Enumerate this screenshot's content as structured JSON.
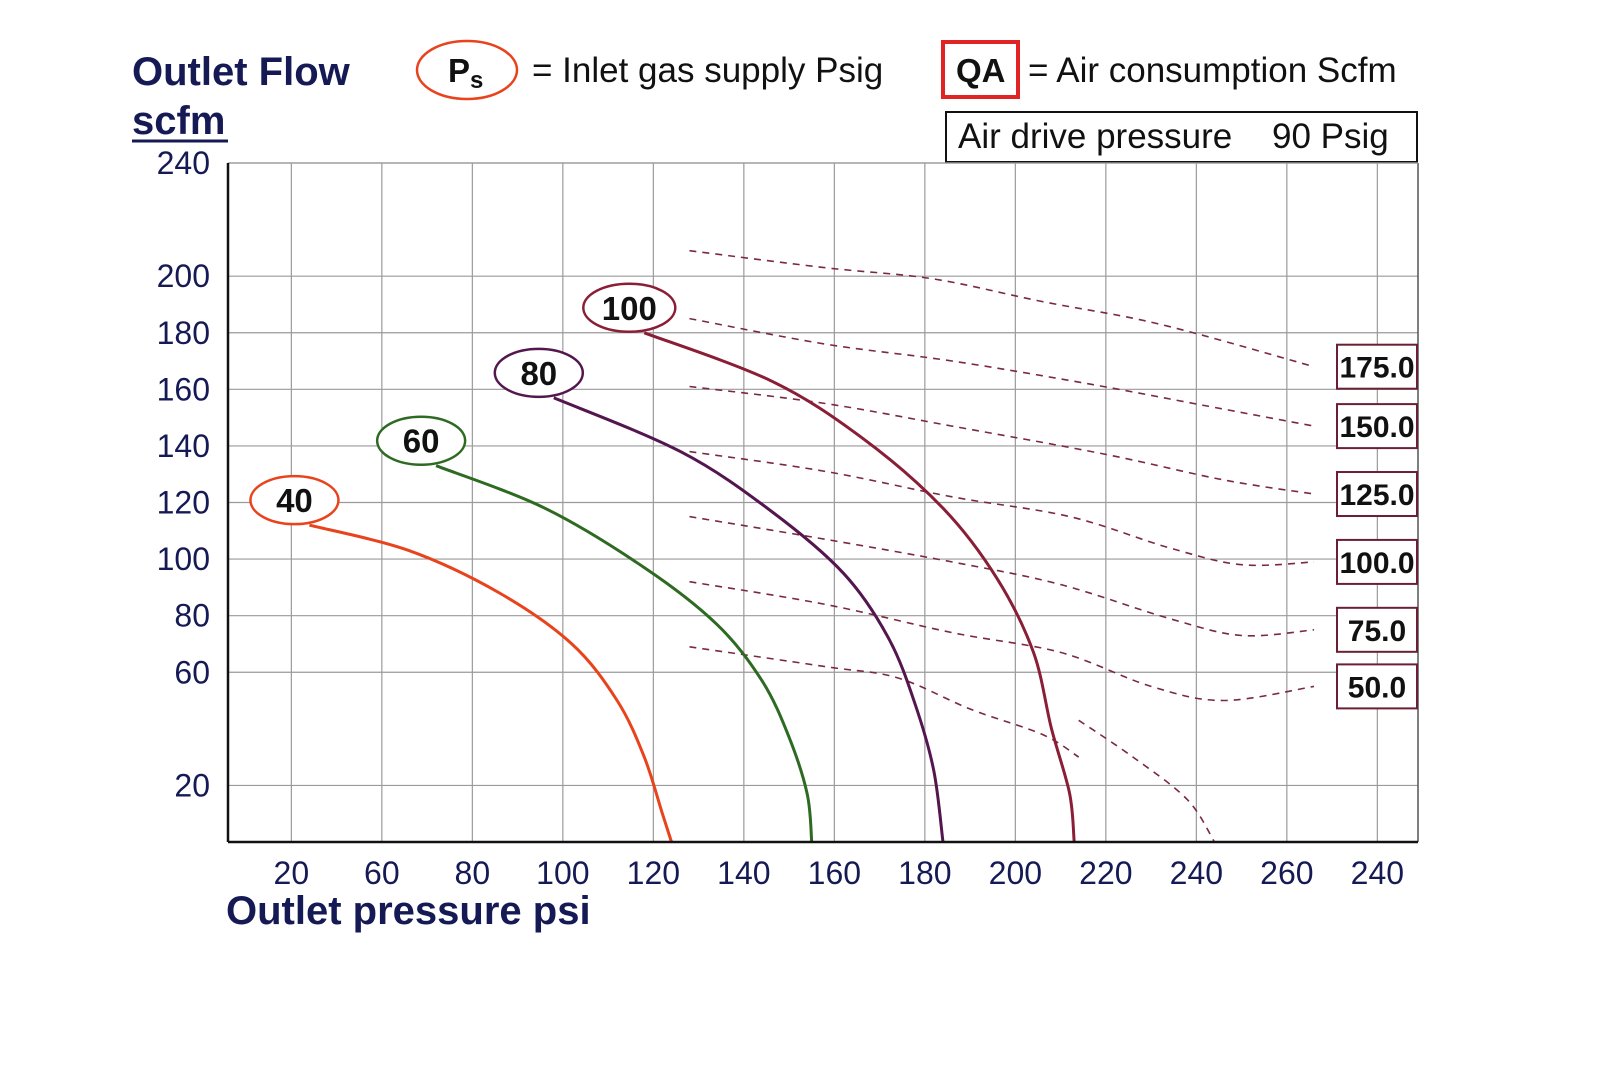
{
  "chart_data": {
    "type": "line",
    "ylabel_line1": "Outlet Flow",
    "ylabel_line2": "scfm",
    "xlabel": "Outlet pressure  psi",
    "legend": {
      "ps_symbol": "P",
      "ps_subscript": "s",
      "ps_text": "= Inlet gas supply  Psig",
      "qa_symbol": "QA",
      "qa_text": "= Air consumption  Scfm",
      "drive_label": "Air drive pressure",
      "drive_value": "90 Psig"
    },
    "x_tick_labels": [
      "20",
      "60",
      "80",
      "100",
      "120",
      "140",
      "160",
      "180",
      "200",
      "220",
      "240",
      "260",
      "240"
    ],
    "y_tick_labels": [
      "20",
      "60",
      "80",
      "100",
      "120",
      "140",
      "160",
      "180",
      "200",
      "240"
    ],
    "grid": true,
    "supply_pressure_curves": [
      {
        "name": "40",
        "color": "#e8431c",
        "points": [
          [
            0.9,
            112
          ],
          [
            2.0,
            103
          ],
          [
            3.0,
            88
          ],
          [
            3.8,
            70
          ],
          [
            4.3,
            50
          ],
          [
            4.6,
            30
          ],
          [
            4.8,
            10
          ],
          [
            4.9,
            0
          ]
        ]
      },
      {
        "name": "60",
        "color": "#2e6a22",
        "points": [
          [
            2.3,
            133
          ],
          [
            3.5,
            118
          ],
          [
            4.6,
            97
          ],
          [
            5.4,
            77
          ],
          [
            5.9,
            57
          ],
          [
            6.2,
            37
          ],
          [
            6.4,
            17
          ],
          [
            6.45,
            0
          ]
        ]
      },
      {
        "name": "80",
        "color": "#53164e",
        "points": [
          [
            3.6,
            157
          ],
          [
            5.0,
            138
          ],
          [
            6.0,
            117
          ],
          [
            6.8,
            95
          ],
          [
            7.3,
            72
          ],
          [
            7.6,
            48
          ],
          [
            7.8,
            25
          ],
          [
            7.9,
            0
          ]
        ]
      },
      {
        "name": "100",
        "color": "#8a1e36",
        "points": [
          [
            4.6,
            180
          ],
          [
            6.0,
            163
          ],
          [
            7.0,
            143
          ],
          [
            7.9,
            118
          ],
          [
            8.5,
            93
          ],
          [
            8.9,
            67
          ],
          [
            9.1,
            40
          ],
          [
            9.3,
            17
          ],
          [
            9.35,
            0
          ]
        ]
      }
    ],
    "air_consumption_lines": [
      {
        "name": "175.0",
        "points": [
          [
            5.1,
            209
          ],
          [
            6.6,
            203
          ],
          [
            7.8,
            199
          ],
          [
            9.0,
            191
          ],
          [
            10.3,
            183
          ],
          [
            12.0,
            168
          ]
        ]
      },
      {
        "name": "150.0",
        "points": [
          [
            5.1,
            185
          ],
          [
            6.6,
            176
          ],
          [
            8.0,
            170
          ],
          [
            9.5,
            162
          ],
          [
            11.0,
            153
          ],
          [
            12.0,
            147
          ]
        ]
      },
      {
        "name": "125.0",
        "points": [
          [
            5.1,
            161
          ],
          [
            6.6,
            155
          ],
          [
            8.0,
            147
          ],
          [
            9.7,
            137
          ],
          [
            11.0,
            128
          ],
          [
            12.0,
            123
          ]
        ]
      },
      {
        "name": "100.0",
        "points": [
          [
            5.1,
            138
          ],
          [
            6.6,
            131
          ],
          [
            8.0,
            122
          ],
          [
            9.3,
            115
          ],
          [
            10.4,
            104
          ],
          [
            11.2,
            98
          ],
          [
            12.0,
            99
          ]
        ]
      },
      {
        "name": "75.0",
        "points": [
          [
            5.1,
            115
          ],
          [
            6.6,
            107
          ],
          [
            8.0,
            99
          ],
          [
            9.2,
            91
          ],
          [
            10.4,
            79
          ],
          [
            11.2,
            73
          ],
          [
            12.0,
            75
          ]
        ]
      },
      {
        "name": "50.0",
        "points": [
          [
            5.1,
            92
          ],
          [
            6.6,
            84
          ],
          [
            8.0,
            74
          ],
          [
            9.2,
            67
          ],
          [
            10.2,
            55
          ],
          [
            11.0,
            50
          ],
          [
            12.0,
            55
          ]
        ]
      },
      {
        "name": "",
        "points": [
          [
            5.1,
            69
          ],
          [
            6.6,
            62
          ],
          [
            7.4,
            58
          ],
          [
            8.2,
            47
          ],
          [
            9.0,
            38
          ],
          [
            9.4,
            30
          ]
        ]
      },
      {
        "name": "",
        "points": [
          [
            9.4,
            43
          ],
          [
            10.0,
            30
          ],
          [
            10.6,
            15
          ],
          [
            10.9,
            0
          ]
        ]
      }
    ]
  }
}
